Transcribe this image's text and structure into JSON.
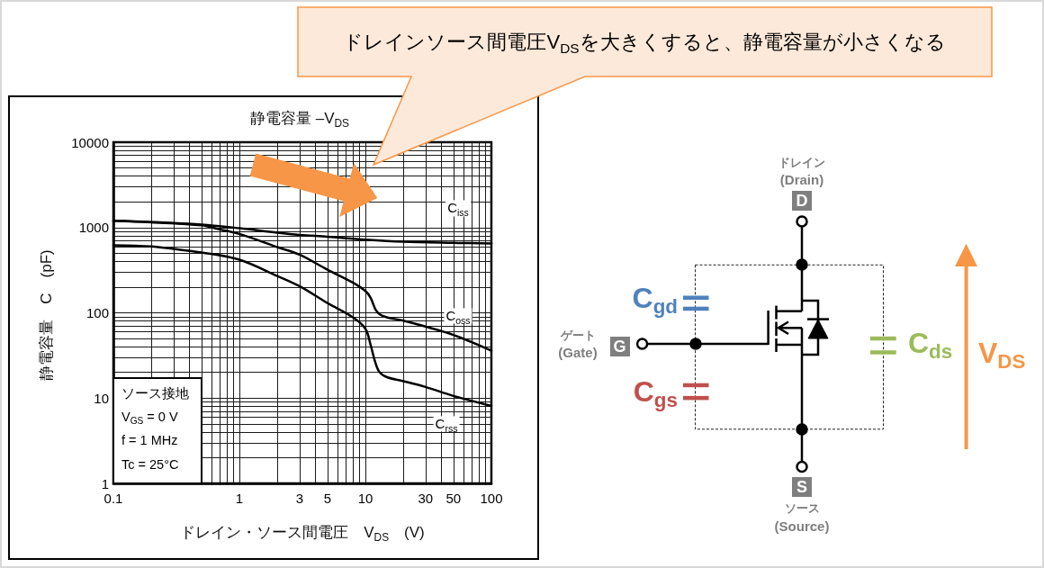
{
  "chart_data": {
    "type": "line",
    "title": "静電容量 –V$_{DS}$",
    "xlabel": "ドレイン・ソース間電圧　V$_{DS}$　(V)",
    "ylabel": "静電容量　C　(pF)",
    "series": [
      {
        "name": "C$_{iss}$",
        "color": "#000000",
        "x": [
          0.1,
          0.2,
          0.5,
          1,
          2,
          3,
          5,
          10,
          20,
          50,
          100
        ],
        "values": [
          1200,
          1160,
          1080,
          980,
          870,
          820,
          780,
          720,
          680,
          660,
          650
        ]
      },
      {
        "name": "C$_{oss}$",
        "color": "#000000",
        "x": [
          0.1,
          0.2,
          0.5,
          0.7,
          1,
          2,
          3,
          5,
          8,
          10,
          11,
          12,
          13,
          15,
          20,
          30,
          50,
          100
        ],
        "values": [
          1200,
          1150,
          1060,
          950,
          840,
          590,
          480,
          320,
          225,
          180,
          150,
          110,
          96,
          88,
          81,
          69,
          55,
          36
        ]
      },
      {
        "name": "C$_{rss}$",
        "color": "#000000",
        "x": [
          0.1,
          0.2,
          0.3,
          0.5,
          1,
          2,
          3,
          5,
          8,
          10,
          11,
          12,
          13,
          15,
          20,
          30,
          50,
          100
        ],
        "values": [
          620,
          600,
          560,
          510,
          420,
          270,
          205,
          130,
          88,
          65,
          42,
          26,
          20,
          17.5,
          15.8,
          13.5,
          10.6,
          8.1
        ]
      }
    ],
    "xlim": [
      0.1,
      100
    ],
    "ylim": [
      1,
      10000
    ],
    "xticks": [
      0.1,
      1,
      3,
      5,
      10,
      30,
      50,
      100
    ],
    "yticks": [
      1,
      10,
      100,
      1000,
      10000
    ],
    "log": "xy",
    "grid": true,
    "marker": "none",
    "line_style": "solid",
    "annotations": [
      "ドレインソース間電圧V$_{DS}$を大きくすると、静電容量が小さくなる",
      "ソース接地",
      "V$_{GS}$ = 0 V",
      "f = 1 MHz",
      "Tc = 25°C",
      "ドレイン",
      "(Drain)",
      "D",
      "ゲート",
      "(Gate)",
      "G",
      "S",
      "ソース",
      "(Source)",
      "C$_{gd}$",
      "C$_{gs}$",
      "C$_{ds}$",
      "V$_{DS}$"
    ]
  }
}
